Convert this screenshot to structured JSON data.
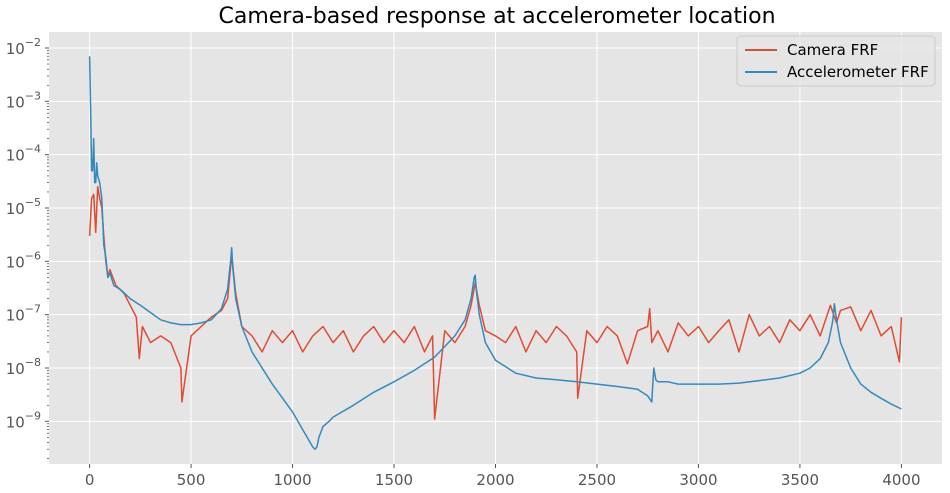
{
  "chart_data": {
    "type": "line",
    "title": "Camera-based response at accelerometer location",
    "xlabel": "",
    "ylabel": "",
    "xlim": [
      -200,
      4200
    ],
    "ylim_log10": [
      -9.8,
      -1.7
    ],
    "yscale": "log",
    "grid": true,
    "legend_position": "top-right",
    "colors": {
      "background": "#e5e5e5",
      "grid": "#ffffff",
      "camera": "#e24a33",
      "accelerometer": "#348abd",
      "tick_text": "#555555"
    },
    "x_ticks": [
      {
        "value": 0,
        "label": "0"
      },
      {
        "value": 500,
        "label": "500"
      },
      {
        "value": 1000,
        "label": "1000"
      },
      {
        "value": 1500,
        "label": "1500"
      },
      {
        "value": 2000,
        "label": "2000"
      },
      {
        "value": 2500,
        "label": "2500"
      },
      {
        "value": 3000,
        "label": "3000"
      },
      {
        "value": 3500,
        "label": "3500"
      },
      {
        "value": 4000,
        "label": "4000"
      }
    ],
    "y_ticks": [
      {
        "exp": -9,
        "base": "10",
        "sup": "−9"
      },
      {
        "exp": -8,
        "base": "10",
        "sup": "−8"
      },
      {
        "exp": -7,
        "base": "10",
        "sup": "−7"
      },
      {
        "exp": -6,
        "base": "10",
        "sup": "−6"
      },
      {
        "exp": -5,
        "base": "10",
        "sup": "−5"
      },
      {
        "exp": -4,
        "base": "10",
        "sup": "−4"
      },
      {
        "exp": -3,
        "base": "10",
        "sup": "−3"
      },
      {
        "exp": -2,
        "base": "10",
        "sup": "−2"
      }
    ],
    "series": [
      {
        "name": "Camera FRF",
        "color": "#e24a33",
        "x": [
          0,
          10,
          20,
          30,
          40,
          50,
          60,
          70,
          80,
          90,
          100,
          130,
          170,
          200,
          230,
          245,
          260,
          300,
          350,
          400,
          450,
          455,
          500,
          550,
          600,
          650,
          680,
          700,
          720,
          750,
          800,
          850,
          900,
          950,
          1000,
          1050,
          1100,
          1150,
          1200,
          1250,
          1300,
          1350,
          1400,
          1450,
          1500,
          1550,
          1600,
          1650,
          1690,
          1700,
          1750,
          1800,
          1850,
          1880,
          1900,
          1920,
          1950,
          2000,
          2050,
          2100,
          2150,
          2200,
          2250,
          2300,
          2350,
          2400,
          2405,
          2450,
          2500,
          2550,
          2600,
          2650,
          2700,
          2750,
          2760,
          2770,
          2800,
          2850,
          2900,
          2950,
          3000,
          3050,
          3100,
          3150,
          3200,
          3250,
          3300,
          3350,
          3400,
          3450,
          3500,
          3550,
          3600,
          3650,
          3680,
          3700,
          3750,
          3800,
          3850,
          3900,
          3950,
          3990,
          4000
        ],
        "y": [
          3e-06,
          1.5e-05,
          1.8e-05,
          3.5e-06,
          2.5e-05,
          1.5e-05,
          1e-05,
          3e-06,
          1e-06,
          5e-07,
          7e-07,
          3.5e-07,
          2.5e-07,
          1.5e-07,
          9e-08,
          1.5e-08,
          6e-08,
          3e-08,
          4e-08,
          3e-08,
          1e-08,
          2.3e-09,
          4e-08,
          6e-08,
          9e-08,
          1.2e-07,
          2e-07,
          1.3e-06,
          2.5e-07,
          6e-08,
          4e-08,
          2e-08,
          5e-08,
          3e-08,
          5e-08,
          2e-08,
          4e-08,
          6e-08,
          3e-08,
          5e-08,
          2e-08,
          4e-08,
          6e-08,
          3e-08,
          5e-08,
          3e-08,
          6e-08,
          2e-08,
          4e-08,
          1.1e-09,
          5e-08,
          3e-08,
          6e-08,
          1.5e-07,
          4e-07,
          1.5e-07,
          5e-08,
          4e-08,
          3e-08,
          6e-08,
          2e-08,
          5e-08,
          3e-08,
          6e-08,
          4e-08,
          2e-08,
          2.7e-09,
          5e-08,
          3e-08,
          6e-08,
          4e-08,
          1.2e-08,
          5e-08,
          6e-08,
          1.3e-07,
          3e-08,
          5e-08,
          2e-08,
          7e-08,
          4e-08,
          6e-08,
          3e-08,
          5e-08,
          8e-08,
          2e-08,
          1e-07,
          4e-08,
          6e-08,
          3e-08,
          8e-08,
          5e-08,
          1e-07,
          4e-08,
          1.5e-07,
          7e-08,
          1.2e-07,
          1.4e-07,
          5e-08,
          1.2e-07,
          4e-08,
          6e-08,
          1.3e-08,
          9e-08
        ]
      },
      {
        "name": "Accelerometer FRF",
        "color": "#348abd",
        "x": [
          0,
          5,
          10,
          15,
          20,
          25,
          30,
          35,
          40,
          50,
          60,
          70,
          80,
          90,
          100,
          120,
          150,
          200,
          250,
          300,
          350,
          400,
          450,
          500,
          550,
          600,
          650,
          680,
          695,
          700,
          705,
          720,
          750,
          800,
          900,
          1000,
          1050,
          1100,
          1110,
          1120,
          1130,
          1150,
          1180,
          1200,
          1300,
          1400,
          1500,
          1600,
          1700,
          1800,
          1850,
          1880,
          1895,
          1900,
          1905,
          1920,
          1950,
          2000,
          2100,
          2200,
          2300,
          2400,
          2500,
          2600,
          2700,
          2750,
          2770,
          2775,
          2780,
          2790,
          2800,
          2850,
          2900,
          3000,
          3100,
          3200,
          3300,
          3400,
          3500,
          3550,
          3600,
          3640,
          3660,
          3665,
          3670,
          3680,
          3700,
          3750,
          3800,
          3850,
          3900,
          3950,
          4000
        ],
        "y": [
          0.007,
          0.0008,
          5e-05,
          5e-05,
          0.0002,
          3e-05,
          3e-05,
          7e-05,
          4e-05,
          3e-05,
          1.5e-05,
          2e-06,
          1.2e-06,
          5e-07,
          6e-07,
          3.5e-07,
          3e-07,
          2e-07,
          1.5e-07,
          1.1e-07,
          8e-08,
          7e-08,
          6.5e-08,
          6.5e-08,
          7e-08,
          8e-08,
          1.3e-07,
          3e-07,
          1e-06,
          1.8e-06,
          8e-07,
          2e-07,
          6e-08,
          2e-08,
          5e-09,
          1.5e-09,
          7e-10,
          3.3e-10,
          3e-10,
          3.3e-10,
          5e-10,
          8e-10,
          1e-09,
          1.2e-09,
          2e-09,
          3.5e-09,
          5.5e-09,
          9e-09,
          1.6e-08,
          4e-08,
          8e-08,
          2e-07,
          5e-07,
          5.5e-07,
          3e-07,
          1e-07,
          3e-08,
          1.4e-08,
          8e-09,
          6.5e-09,
          6e-09,
          5.5e-09,
          5e-09,
          4.5e-09,
          4e-09,
          3e-09,
          2.3e-09,
          5e-09,
          1e-08,
          6e-09,
          5.5e-09,
          5.5e-09,
          5e-09,
          5e-09,
          5e-09,
          5.2e-09,
          5.8e-09,
          6.5e-09,
          8e-09,
          1e-08,
          1.5e-08,
          3e-08,
          7e-08,
          1e-07,
          1.6e-07,
          8e-08,
          3e-08,
          1e-08,
          5e-09,
          3.5e-09,
          2.7e-09,
          2.1e-09,
          1.7e-09
        ]
      }
    ]
  }
}
